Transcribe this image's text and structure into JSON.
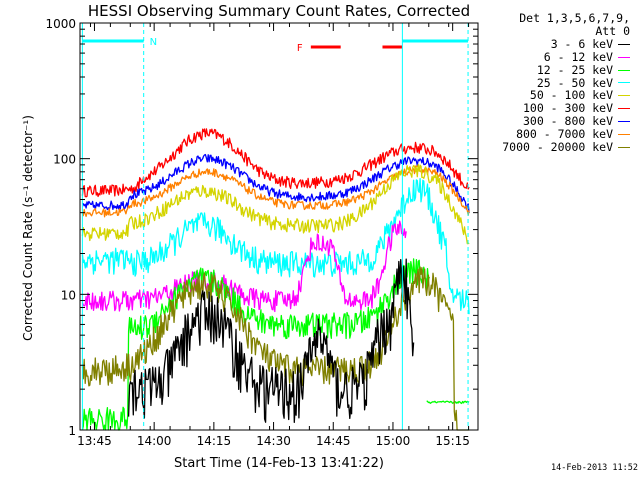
{
  "chart_data": {
    "type": "line",
    "title": "HESSI Observing Summary Count Rates, Corrected",
    "xlabel": "Start Time (14-Feb-13 13:41:22)",
    "ylabel": "Corrected Count Rate (s⁻¹ detector⁻¹)",
    "x_unit": "minutes after 13:41:22",
    "xlim": [
      0,
      100
    ],
    "ylim": [
      1,
      1000
    ],
    "yscale": "log",
    "grid": false,
    "legend_position": "right",
    "x_ticks": [
      "13:45",
      "14:00",
      "14:15",
      "14:30",
      "14:45",
      "15:00",
      "15:15"
    ],
    "y_ticks": [
      "1",
      "10",
      "100",
      "1000"
    ],
    "legend_header": [
      "Det 1,3,5,6,7,9,",
      "Att 0"
    ],
    "series": [
      {
        "name": "3 - 6 keV",
        "color": "#000000"
      },
      {
        "name": "6 - 12 keV",
        "color": "#ff00ff"
      },
      {
        "name": "12 - 25 keV",
        "color": "#00ff00"
      },
      {
        "name": "25 - 50 keV",
        "color": "#00ffff"
      },
      {
        "name": "50 - 100 keV",
        "color": "#d4d400"
      },
      {
        "name": "100 - 300 keV",
        "color": "#ff0000"
      },
      {
        "name": "300 - 800 keV",
        "color": "#0000ff"
      },
      {
        "name": "800 - 7000 keV",
        "color": "#ff8000"
      },
      {
        "name": "7000 - 20000 keV",
        "color": "#808000"
      }
    ],
    "annotations": {
      "night_label": "N",
      "flare_label": "F",
      "night_color": "#00ffff",
      "flare_color": "#ff0000"
    },
    "timestamp": "14-Feb-2013 11:52"
  }
}
